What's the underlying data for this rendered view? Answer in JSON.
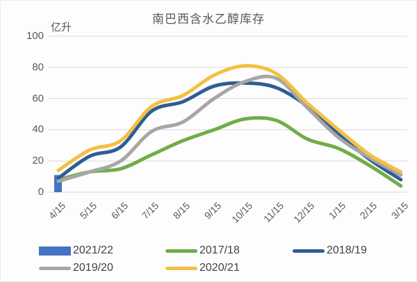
{
  "title": "南巴西含水乙醇库存",
  "y_axis_unit_label": "亿升",
  "chart_data": {
    "type": "line",
    "title": "南巴西含水乙醇库存",
    "ylabel": "亿升",
    "xlabel": "",
    "ylim": [
      0,
      100
    ],
    "y_ticks": [
      0,
      20,
      40,
      60,
      80,
      100
    ],
    "grid": true,
    "legend_position": "bottom",
    "categories": [
      "4/15",
      "5/15",
      "6/15",
      "7/15",
      "8/15",
      "9/15",
      "10/15",
      "11/15",
      "12/15",
      "1/15",
      "2/15",
      "3/15"
    ],
    "series": [
      {
        "name": "2021/22",
        "type": "bar",
        "color": "#4472C4",
        "values": [
          11,
          null,
          null,
          null,
          null,
          null,
          null,
          null,
          null,
          null,
          null,
          null
        ]
      },
      {
        "name": "2017/18",
        "type": "line",
        "color": "#70AD47",
        "values": [
          8,
          13,
          15,
          24,
          33,
          40,
          47,
          46,
          34,
          28,
          17,
          4
        ]
      },
      {
        "name": "2018/19",
        "type": "line",
        "color": "#2F5D94",
        "values": [
          9,
          23,
          29,
          52,
          58,
          68,
          70,
          67,
          55,
          37,
          21,
          8
        ]
      },
      {
        "name": "2019/20",
        "type": "line",
        "color": "#A6A6A6",
        "values": [
          7,
          13,
          20,
          39,
          45,
          60,
          71,
          73,
          54,
          35,
          22,
          11
        ]
      },
      {
        "name": "2020/21",
        "type": "line",
        "color": "#F3C043",
        "values": [
          14,
          27,
          33,
          55,
          62,
          75,
          81,
          76,
          57,
          40,
          24,
          13
        ]
      }
    ],
    "gridline_color": "#D9D9D9"
  }
}
